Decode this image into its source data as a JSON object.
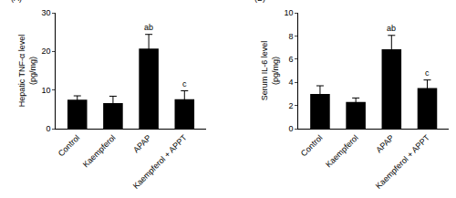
{
  "chart_data": [
    {
      "type": "bar",
      "title": "(A)",
      "y_label": "Hepatic TNF-α level (pg/mg)",
      "categories": [
        "Control",
        "Kaempferol",
        "APAP",
        "Kaempferol + APPT"
      ],
      "values": [
        7.5,
        6.6,
        20.7,
        7.6
      ],
      "errors": [
        1.0,
        1.8,
        3.7,
        2.2
      ],
      "annotations": [
        null,
        null,
        "ab",
        "c"
      ],
      "color": "#000000",
      "ylim": [
        0,
        30
      ],
      "yticks": [
        0,
        10,
        20,
        30
      ],
      "grid": false
    },
    {
      "type": "bar",
      "title": "(B)",
      "y_label": "Serum IL-6 level (pg/mg)",
      "categories": [
        "Control",
        "Kaempferol",
        "APAP",
        "Kaempferol + APPT"
      ],
      "values": [
        3.0,
        2.3,
        6.85,
        3.5
      ],
      "errors": [
        0.7,
        0.35,
        1.2,
        0.7
      ],
      "annotations": [
        null,
        null,
        "ab",
        "c"
      ],
      "color": "#000000",
      "ylim": [
        0,
        10
      ],
      "yticks": [
        0,
        2,
        4,
        6,
        8,
        10
      ],
      "grid": false
    }
  ]
}
